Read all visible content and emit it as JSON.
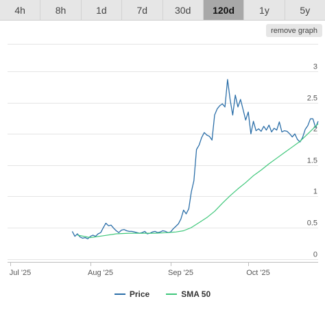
{
  "tabs": [
    {
      "label": "4h",
      "active": false
    },
    {
      "label": "8h",
      "active": false
    },
    {
      "label": "1d",
      "active": false
    },
    {
      "label": "7d",
      "active": false
    },
    {
      "label": "30d",
      "active": false
    },
    {
      "label": "120d",
      "active": true
    },
    {
      "label": "1y",
      "active": false
    },
    {
      "label": "5y",
      "active": false
    }
  ],
  "remove_graph_label": "remove graph",
  "colors": {
    "price": "#2a6ea8",
    "sma": "#3ec77a",
    "grid": "#e4e4e4",
    "axis": "#bdbdbd"
  },
  "chart_data": {
    "type": "line",
    "x_start": "2025-06-30",
    "x_end": "2025-10-28",
    "ylim": [
      0,
      3
    ],
    "y_ticks": [
      0,
      0.5,
      1,
      1.5,
      2,
      2.5,
      3
    ],
    "y_tick_labels": [
      "0",
      "0.5",
      "1",
      "1.5",
      "2",
      "2.5",
      "3"
    ],
    "x_ticks": [
      {
        "date": "2025-07-01",
        "label": "Jul '25"
      },
      {
        "date": "2025-08-01",
        "label": "Aug '25"
      },
      {
        "date": "2025-09-01",
        "label": "Sep '25"
      },
      {
        "date": "2025-10-01",
        "label": "Oct '25"
      }
    ],
    "series": [
      {
        "name": "Price",
        "points": [
          [
            "2025-07-25",
            0.44
          ],
          [
            "2025-07-26",
            0.36
          ],
          [
            "2025-07-27",
            0.4
          ],
          [
            "2025-07-28",
            0.35
          ],
          [
            "2025-07-29",
            0.33
          ],
          [
            "2025-07-30",
            0.34
          ],
          [
            "2025-07-31",
            0.32
          ],
          [
            "2025-08-01",
            0.36
          ],
          [
            "2025-08-02",
            0.38
          ],
          [
            "2025-08-03",
            0.36
          ],
          [
            "2025-08-04",
            0.4
          ],
          [
            "2025-08-05",
            0.42
          ],
          [
            "2025-08-06",
            0.5
          ],
          [
            "2025-08-07",
            0.57
          ],
          [
            "2025-08-08",
            0.53
          ],
          [
            "2025-08-09",
            0.54
          ],
          [
            "2025-08-10",
            0.49
          ],
          [
            "2025-08-11",
            0.45
          ],
          [
            "2025-08-12",
            0.42
          ],
          [
            "2025-08-13",
            0.46
          ],
          [
            "2025-08-14",
            0.47
          ],
          [
            "2025-08-15",
            0.45
          ],
          [
            "2025-08-16",
            0.44
          ],
          [
            "2025-08-17",
            0.44
          ],
          [
            "2025-08-18",
            0.43
          ],
          [
            "2025-08-19",
            0.42
          ],
          [
            "2025-08-20",
            0.41
          ],
          [
            "2025-08-21",
            0.42
          ],
          [
            "2025-08-22",
            0.44
          ],
          [
            "2025-08-23",
            0.4
          ],
          [
            "2025-08-24",
            0.41
          ],
          [
            "2025-08-25",
            0.43
          ],
          [
            "2025-08-26",
            0.44
          ],
          [
            "2025-08-27",
            0.42
          ],
          [
            "2025-08-28",
            0.43
          ],
          [
            "2025-08-29",
            0.45
          ],
          [
            "2025-08-30",
            0.44
          ],
          [
            "2025-08-31",
            0.42
          ],
          [
            "2025-09-01",
            0.43
          ],
          [
            "2025-09-02",
            0.48
          ],
          [
            "2025-09-03",
            0.52
          ],
          [
            "2025-09-04",
            0.56
          ],
          [
            "2025-09-05",
            0.64
          ],
          [
            "2025-09-06",
            0.78
          ],
          [
            "2025-09-07",
            0.72
          ],
          [
            "2025-09-08",
            0.8
          ],
          [
            "2025-09-09",
            1.07
          ],
          [
            "2025-09-10",
            1.25
          ],
          [
            "2025-09-11",
            1.75
          ],
          [
            "2025-09-12",
            1.82
          ],
          [
            "2025-09-13",
            1.94
          ],
          [
            "2025-09-14",
            2.02
          ],
          [
            "2025-09-15",
            1.98
          ],
          [
            "2025-09-16",
            1.96
          ],
          [
            "2025-09-17",
            1.9
          ],
          [
            "2025-09-18",
            2.3
          ],
          [
            "2025-09-19",
            2.4
          ],
          [
            "2025-09-20",
            2.45
          ],
          [
            "2025-09-21",
            2.48
          ],
          [
            "2025-09-22",
            2.43
          ],
          [
            "2025-09-23",
            2.87
          ],
          [
            "2025-09-24",
            2.55
          ],
          [
            "2025-09-25",
            2.3
          ],
          [
            "2025-09-26",
            2.62
          ],
          [
            "2025-09-27",
            2.43
          ],
          [
            "2025-09-28",
            2.55
          ],
          [
            "2025-09-29",
            2.39
          ],
          [
            "2025-09-30",
            2.22
          ],
          [
            "2025-10-01",
            2.35
          ],
          [
            "2025-10-02",
            2.0
          ],
          [
            "2025-10-03",
            2.2
          ],
          [
            "2025-10-04",
            2.05
          ],
          [
            "2025-10-05",
            2.08
          ],
          [
            "2025-10-06",
            2.04
          ],
          [
            "2025-10-07",
            2.12
          ],
          [
            "2025-10-08",
            2.06
          ],
          [
            "2025-10-09",
            2.14
          ],
          [
            "2025-10-10",
            2.03
          ],
          [
            "2025-10-11",
            2.09
          ],
          [
            "2025-10-12",
            2.06
          ],
          [
            "2025-10-13",
            2.19
          ],
          [
            "2025-10-14",
            2.03
          ],
          [
            "2025-10-15",
            2.05
          ],
          [
            "2025-10-16",
            2.04
          ],
          [
            "2025-10-17",
            2.0
          ],
          [
            "2025-10-18",
            1.95
          ],
          [
            "2025-10-19",
            2.0
          ],
          [
            "2025-10-20",
            1.91
          ],
          [
            "2025-10-21",
            1.87
          ],
          [
            "2025-10-22",
            1.94
          ],
          [
            "2025-10-23",
            2.07
          ],
          [
            "2025-10-24",
            2.13
          ],
          [
            "2025-10-25",
            2.24
          ],
          [
            "2025-10-26",
            2.24
          ],
          [
            "2025-10-27",
            2.1
          ],
          [
            "2025-10-28",
            2.2
          ]
        ]
      },
      {
        "name": "SMA 50",
        "points": [
          [
            "2025-07-27",
            0.38
          ],
          [
            "2025-08-01",
            0.34
          ],
          [
            "2025-08-06",
            0.37
          ],
          [
            "2025-08-11",
            0.4
          ],
          [
            "2025-08-16",
            0.41
          ],
          [
            "2025-08-21",
            0.41
          ],
          [
            "2025-08-26",
            0.41
          ],
          [
            "2025-08-31",
            0.42
          ],
          [
            "2025-09-03",
            0.43
          ],
          [
            "2025-09-06",
            0.45
          ],
          [
            "2025-09-09",
            0.5
          ],
          [
            "2025-09-12",
            0.58
          ],
          [
            "2025-09-15",
            0.66
          ],
          [
            "2025-09-18",
            0.76
          ],
          [
            "2025-09-21",
            0.89
          ],
          [
            "2025-09-24",
            1.01
          ],
          [
            "2025-09-27",
            1.12
          ],
          [
            "2025-09-30",
            1.22
          ],
          [
            "2025-10-03",
            1.33
          ],
          [
            "2025-10-06",
            1.42
          ],
          [
            "2025-10-09",
            1.52
          ],
          [
            "2025-10-12",
            1.61
          ],
          [
            "2025-10-15",
            1.7
          ],
          [
            "2025-10-18",
            1.79
          ],
          [
            "2025-10-21",
            1.88
          ],
          [
            "2025-10-24",
            2.0
          ],
          [
            "2025-10-26",
            2.08
          ],
          [
            "2025-10-28",
            2.16
          ]
        ]
      }
    ]
  }
}
